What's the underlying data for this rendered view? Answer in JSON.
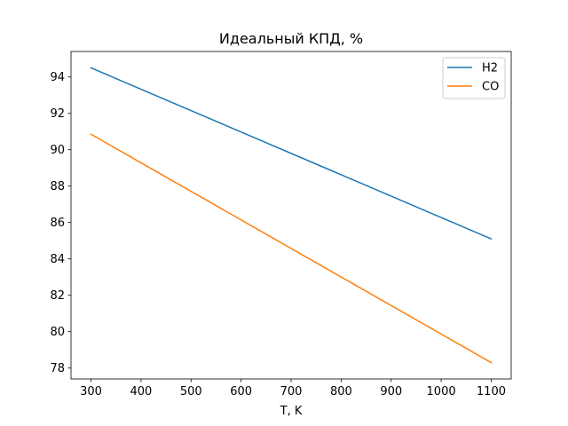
{
  "chart_data": {
    "type": "line",
    "title": "Идеальный КПД, %",
    "xlabel": "T, K",
    "ylabel": "",
    "xlim": [
      260,
      1140
    ],
    "ylim": [
      77.4,
      95.4
    ],
    "xticks": [
      300,
      400,
      500,
      600,
      700,
      800,
      900,
      1000,
      1100
    ],
    "yticks": [
      78,
      80,
      82,
      84,
      86,
      88,
      90,
      92,
      94
    ],
    "grid": false,
    "legend_position": "top-right",
    "series": [
      {
        "name": "H2",
        "color": "#1f77b4",
        "x": [
          300,
          1100
        ],
        "y": [
          94.5,
          85.1
        ]
      },
      {
        "name": "CO",
        "color": "#ff7f0e",
        "x": [
          300,
          1100
        ],
        "y": [
          90.85,
          78.3
        ]
      }
    ]
  }
}
